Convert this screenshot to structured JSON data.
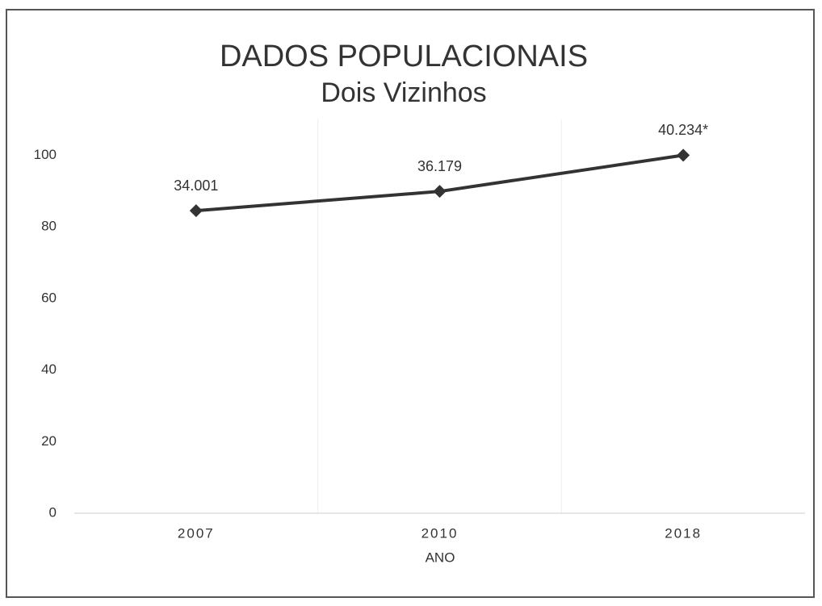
{
  "chart_data": {
    "type": "line",
    "title": "DADOS POPULACIONAIS",
    "subtitle": "Dois Vizinhos",
    "x_label": "ANO",
    "categories": [
      "2007",
      "2010",
      "2018"
    ],
    "values": [
      84.5,
      89.9,
      100
    ],
    "value_labels": [
      "34.001",
      "36.179",
      "40.234*"
    ],
    "color": "#333333",
    "ylim": [
      0,
      110
    ],
    "yticks": [
      0,
      20,
      40,
      60,
      80,
      100
    ],
    "grid": false
  }
}
